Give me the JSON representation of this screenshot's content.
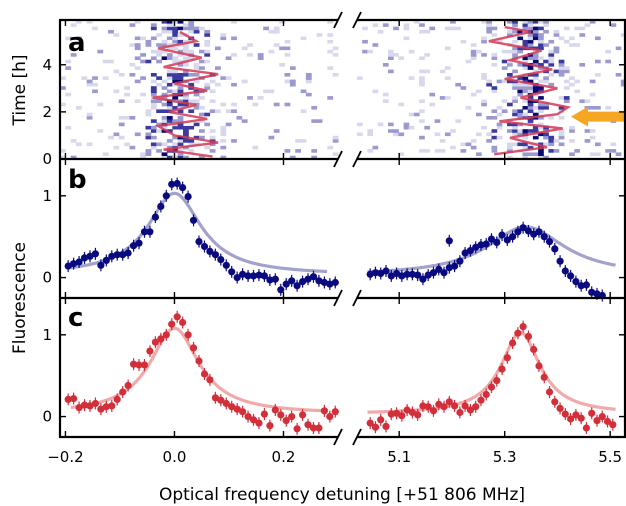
{
  "chart_data": {
    "type": "scatter",
    "title": "",
    "xlabel": "Optical frequency detuning [+51 806 MHz]",
    "x_segments": [
      [
        -0.21,
        0.3
      ],
      [
        5.02,
        5.53
      ]
    ],
    "x_ticks": [
      {
        "value": -0.2,
        "label": "−0.2"
      },
      {
        "value": 0.0,
        "label": "0.0"
      },
      {
        "value": 0.2,
        "label": "0.2"
      },
      {
        "value": 5.1,
        "label": "5.1"
      },
      {
        "value": 5.3,
        "label": "5.3"
      },
      {
        "value": 5.5,
        "label": "5.5"
      }
    ],
    "axis_break_marker": "//",
    "panels": [
      {
        "label": "a",
        "type": "heatmap",
        "ylabel": "Time [h]",
        "ylim": [
          0,
          5.9
        ],
        "y_ticks": [
          "0",
          "2",
          "4"
        ],
        "colormap": [
          "#ffffff",
          "#d8d8ec",
          "#9a9ad0",
          "#3a3aa0",
          "#0a0a6e"
        ],
        "trace_color": "#d23a55",
        "arrow_color": "#f5a623",
        "arrow_time_h": 1.8,
        "line_center_left": 0.0,
        "line_center_right": 5.35,
        "trace_left": [
          [
            0.07,
            0.1
          ],
          [
            -0.02,
            0.4
          ],
          [
            0.08,
            0.7
          ],
          [
            0.0,
            1.0
          ],
          [
            -0.03,
            1.4
          ],
          [
            0.06,
            1.7
          ],
          [
            -0.01,
            2.0
          ],
          [
            0.04,
            2.3
          ],
          [
            -0.04,
            2.6
          ],
          [
            0.06,
            2.9
          ],
          [
            0.0,
            3.2
          ],
          [
            0.08,
            3.6
          ],
          [
            -0.02,
            3.9
          ],
          [
            0.05,
            4.3
          ],
          [
            -0.03,
            4.7
          ],
          [
            0.04,
            5.0
          ],
          [
            0.01,
            5.4
          ]
        ],
        "trace_right": [
          [
            5.28,
            0.2
          ],
          [
            5.38,
            0.5
          ],
          [
            5.31,
            0.9
          ],
          [
            5.41,
            1.3
          ],
          [
            5.29,
            1.6
          ],
          [
            5.4,
            1.9
          ],
          [
            5.42,
            2.2
          ],
          [
            5.33,
            2.6
          ],
          [
            5.4,
            3.0
          ],
          [
            5.3,
            3.4
          ],
          [
            5.39,
            3.8
          ],
          [
            5.31,
            4.2
          ],
          [
            5.37,
            4.6
          ],
          [
            5.27,
            5.0
          ],
          [
            5.35,
            5.4
          ],
          [
            5.3,
            5.6
          ]
        ]
      },
      {
        "label": "b",
        "type": "scatter",
        "ylabel": "",
        "ylim": [
          -0.25,
          1.45
        ],
        "y_ticks": [
          "0",
          "1"
        ],
        "color": "#0a0a80",
        "fit_color": "#9898c8",
        "fit_left": {
          "center": 0.0,
          "width": 0.06,
          "amp": 1.0,
          "base": 0.03
        },
        "fit_right": {
          "center": 5.34,
          "width": 0.09,
          "amp": 0.6,
          "base": 0.02
        },
        "points_left": [
          [
            -0.195,
            0.14
          ],
          [
            -0.185,
            0.17
          ],
          [
            -0.175,
            0.19
          ],
          [
            -0.165,
            0.24
          ],
          [
            -0.155,
            0.26
          ],
          [
            -0.145,
            0.29
          ],
          [
            -0.135,
            0.15
          ],
          [
            -0.125,
            0.21
          ],
          [
            -0.115,
            0.26
          ],
          [
            -0.105,
            0.28
          ],
          [
            -0.095,
            0.28
          ],
          [
            -0.085,
            0.3
          ],
          [
            -0.075,
            0.39
          ],
          [
            -0.065,
            0.42
          ],
          [
            -0.055,
            0.56
          ],
          [
            -0.045,
            0.56
          ],
          [
            -0.035,
            0.74
          ],
          [
            -0.025,
            0.87
          ],
          [
            -0.015,
            1.0
          ],
          [
            -0.005,
            1.14
          ],
          [
            0.005,
            1.15
          ],
          [
            0.015,
            1.1
          ],
          [
            0.025,
            0.99
          ],
          [
            0.035,
            0.7
          ],
          [
            0.045,
            0.44
          ],
          [
            0.055,
            0.38
          ],
          [
            0.065,
            0.32
          ],
          [
            0.075,
            0.28
          ],
          [
            0.085,
            0.22
          ],
          [
            0.095,
            0.15
          ],
          [
            0.105,
            0.07
          ],
          [
            0.115,
            0.0
          ],
          [
            0.125,
            0.04
          ],
          [
            0.135,
            0.02
          ],
          [
            0.145,
            0.02
          ],
          [
            0.155,
            0.03
          ],
          [
            0.165,
            0.02
          ],
          [
            0.175,
            -0.03
          ],
          [
            0.185,
            -0.02
          ],
          [
            0.195,
            -0.15
          ],
          [
            0.205,
            -0.08
          ],
          [
            0.215,
            -0.04
          ],
          [
            0.225,
            -0.1
          ],
          [
            0.235,
            -0.05
          ],
          [
            0.245,
            -0.02
          ],
          [
            0.255,
            0.01
          ],
          [
            0.265,
            -0.04
          ],
          [
            0.275,
            -0.06
          ],
          [
            0.285,
            -0.08
          ],
          [
            0.295,
            -0.06
          ]
        ],
        "points_right": [
          [
            5.045,
            0.04
          ],
          [
            5.055,
            0.06
          ],
          [
            5.065,
            0.05
          ],
          [
            5.075,
            0.08
          ],
          [
            5.085,
            0.02
          ],
          [
            5.095,
            0.05
          ],
          [
            5.105,
            0.02
          ],
          [
            5.115,
            0.04
          ],
          [
            5.125,
            0.04
          ],
          [
            5.135,
            0.03
          ],
          [
            5.145,
            -0.02
          ],
          [
            5.155,
            0.03
          ],
          [
            5.165,
            0.06
          ],
          [
            5.175,
            0.1
          ],
          [
            5.185,
            0.06
          ],
          [
            5.195,
            0.12
          ],
          [
            5.205,
            0.14
          ],
          [
            5.215,
            0.2
          ],
          [
            5.225,
            0.3
          ],
          [
            5.235,
            0.33
          ],
          [
            5.245,
            0.37
          ],
          [
            5.255,
            0.4
          ],
          [
            5.265,
            0.41
          ],
          [
            5.275,
            0.47
          ],
          [
            5.285,
            0.43
          ],
          [
            5.295,
            0.52
          ],
          [
            5.305,
            0.46
          ],
          [
            5.315,
            0.5
          ],
          [
            5.325,
            0.56
          ],
          [
            5.335,
            0.61
          ],
          [
            5.345,
            0.57
          ],
          [
            5.355,
            0.53
          ],
          [
            5.365,
            0.56
          ],
          [
            5.375,
            0.5
          ],
          [
            5.385,
            0.44
          ],
          [
            5.395,
            0.35
          ],
          [
            5.405,
            0.2
          ],
          [
            5.415,
            0.08
          ],
          [
            5.425,
            0.02
          ],
          [
            5.435,
            -0.05
          ],
          [
            5.445,
            -0.1
          ],
          [
            5.455,
            -0.09
          ],
          [
            5.465,
            -0.18
          ],
          [
            5.475,
            -0.2
          ],
          [
            5.485,
            -0.22
          ],
          [
            5.195,
            0.45
          ]
        ]
      },
      {
        "label": "c",
        "type": "scatter",
        "ylabel": "Fluorescence",
        "ylim": [
          -0.25,
          1.45
        ],
        "y_ticks": [
          "0",
          "1"
        ],
        "color": "#d32f3a",
        "fit_color": "#f0a0a0",
        "fit_left": {
          "center": 0.0,
          "width": 0.055,
          "amp": 1.05,
          "base": 0.03
        },
        "fit_right": {
          "center": 5.33,
          "width": 0.045,
          "amp": 1.0,
          "base": 0.03
        },
        "points_left": [
          [
            -0.195,
            0.21
          ],
          [
            -0.185,
            0.22
          ],
          [
            -0.175,
            0.11
          ],
          [
            -0.165,
            0.14
          ],
          [
            -0.155,
            0.13
          ],
          [
            -0.145,
            0.16
          ],
          [
            -0.135,
            0.09
          ],
          [
            -0.125,
            0.12
          ],
          [
            -0.115,
            0.13
          ],
          [
            -0.105,
            0.21
          ],
          [
            -0.095,
            0.3
          ],
          [
            -0.085,
            0.38
          ],
          [
            -0.075,
            0.64
          ],
          [
            -0.065,
            0.63
          ],
          [
            -0.055,
            0.63
          ],
          [
            -0.045,
            0.8
          ],
          [
            -0.035,
            0.91
          ],
          [
            -0.025,
            0.95
          ],
          [
            -0.015,
            1.0
          ],
          [
            -0.005,
            1.13
          ],
          [
            0.005,
            1.22
          ],
          [
            0.015,
            1.15
          ],
          [
            0.025,
            1.0
          ],
          [
            0.035,
            0.84
          ],
          [
            0.045,
            0.68
          ],
          [
            0.055,
            0.52
          ],
          [
            0.065,
            0.45
          ],
          [
            0.075,
            0.23
          ],
          [
            0.085,
            0.2
          ],
          [
            0.095,
            0.16
          ],
          [
            0.105,
            0.12
          ],
          [
            0.115,
            0.09
          ],
          [
            0.125,
            0.06
          ],
          [
            0.135,
            0.0
          ],
          [
            0.145,
            -0.04
          ],
          [
            0.155,
            -0.08
          ],
          [
            0.165,
            0.03
          ],
          [
            0.175,
            -0.11
          ],
          [
            0.185,
            0.08
          ],
          [
            0.195,
            0.02
          ],
          [
            0.205,
            -0.05
          ],
          [
            0.215,
            0.0
          ],
          [
            0.225,
            -0.15
          ],
          [
            0.235,
            0.02
          ],
          [
            0.245,
            -0.1
          ],
          [
            0.255,
            -0.14
          ],
          [
            0.265,
            -0.14
          ],
          [
            0.275,
            0.07
          ],
          [
            0.285,
            0.0
          ],
          [
            0.295,
            0.06
          ]
        ],
        "points_right": [
          [
            5.045,
            -0.08
          ],
          [
            5.055,
            -0.13
          ],
          [
            5.065,
            -0.04
          ],
          [
            5.075,
            -0.12
          ],
          [
            5.085,
            0.03
          ],
          [
            5.095,
            0.04
          ],
          [
            5.105,
            0.01
          ],
          [
            5.115,
            0.08
          ],
          [
            5.125,
            0.05
          ],
          [
            5.135,
            0.02
          ],
          [
            5.145,
            0.13
          ],
          [
            5.155,
            0.12
          ],
          [
            5.165,
            0.07
          ],
          [
            5.175,
            0.15
          ],
          [
            5.185,
            0.12
          ],
          [
            5.195,
            0.18
          ],
          [
            5.205,
            0.13
          ],
          [
            5.215,
            0.05
          ],
          [
            5.225,
            0.13
          ],
          [
            5.235,
            0.08
          ],
          [
            5.245,
            0.12
          ],
          [
            5.255,
            0.2
          ],
          [
            5.265,
            0.27
          ],
          [
            5.275,
            0.36
          ],
          [
            5.285,
            0.44
          ],
          [
            5.295,
            0.58
          ],
          [
            5.305,
            0.72
          ],
          [
            5.315,
            0.9
          ],
          [
            5.325,
            1.02
          ],
          [
            5.335,
            1.1
          ],
          [
            5.345,
            0.98
          ],
          [
            5.355,
            0.82
          ],
          [
            5.365,
            0.62
          ],
          [
            5.375,
            0.48
          ],
          [
            5.385,
            0.3
          ],
          [
            5.395,
            0.18
          ],
          [
            5.405,
            0.1
          ],
          [
            5.415,
            0.03
          ],
          [
            5.425,
            -0.03
          ],
          [
            5.435,
            0.02
          ],
          [
            5.445,
            -0.02
          ],
          [
            5.455,
            -0.14
          ],
          [
            5.465,
            0.04
          ],
          [
            5.475,
            -0.05
          ],
          [
            5.485,
            0.0
          ],
          [
            5.495,
            -0.06
          ],
          [
            5.505,
            -0.1
          ]
        ]
      }
    ]
  }
}
